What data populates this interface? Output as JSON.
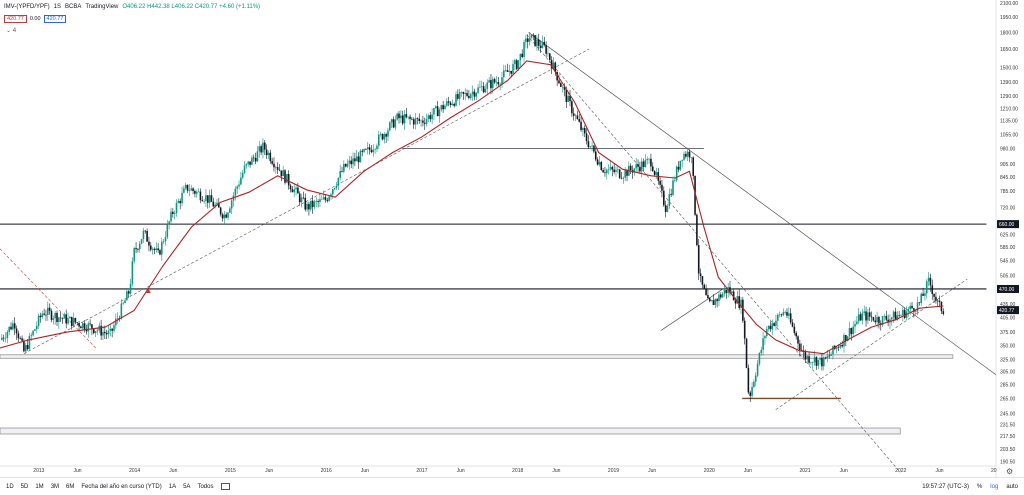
{
  "header": {
    "symbol": "IMV-(YPFD/YPF)",
    "interval": "1S",
    "exchange": "BCBA",
    "source": "TradingView",
    "ohlc": "O406.22 H442.38 L406.22 C420.77 +4.60 (+1.11%)"
  },
  "price_boxes": {
    "sell": "420.77",
    "spread": "0.00",
    "buy": "420.77"
  },
  "indicator_count": "4",
  "colors": {
    "up": "#089981",
    "down": "#131722",
    "ma": "#b22222",
    "last": "#2962ff"
  },
  "footer": {
    "timeframes": [
      "1D",
      "5D",
      "1M",
      "3M",
      "6M",
      "Fecha del año en curso (YTD)",
      "1A",
      "5A",
      "Todos"
    ],
    "clock": "19:57:27 (UTC-3)",
    "pct": "%",
    "log": "log",
    "auto": "auto"
  },
  "chart_data": {
    "type": "candlestick",
    "scale": "log",
    "ylim": [
      190,
      2100
    ],
    "y_ticks": [
      "2100.00",
      "1950.00",
      "1800.00",
      "1650.00",
      "1500.00",
      "1390.00",
      "1290.00",
      "1210.00",
      "1135.00",
      "1055.00",
      "980.00",
      "905.00",
      "845.00",
      "785.00",
      "720.00",
      "660.00",
      "625.00",
      "585.00",
      "545.00",
      "505.00",
      "470.00",
      "435.00",
      "405.00",
      "375.00",
      "350.00",
      "325.00",
      "305.00",
      "285.00",
      "265.00",
      "245.00",
      "231.50",
      "217.50",
      "203.50",
      "190.50"
    ],
    "x_ticks": [
      "2013",
      "Jun",
      "2014",
      "Jun",
      "2015",
      "Jun",
      "2016",
      "Jun",
      "2017",
      "Jun",
      "2018",
      "Jun",
      "2019",
      "Jun",
      "2020",
      "Jun",
      "2021",
      "Jun",
      "2022",
      "Jun",
      "20"
    ],
    "price_labels": [
      {
        "value": 660,
        "text": "660.00"
      },
      {
        "value": 470,
        "text": "470.00"
      },
      {
        "value": 420.77,
        "text": "420.77"
      }
    ],
    "series_path": [
      [
        2012.6,
        360
      ],
      [
        2012.75,
        395
      ],
      [
        2012.85,
        338
      ],
      [
        2013.05,
        418
      ],
      [
        2013.3,
        400
      ],
      [
        2013.55,
        385
      ],
      [
        2013.75,
        370
      ],
      [
        2013.95,
        465
      ],
      [
        2014.0,
        570
      ],
      [
        2014.1,
        630
      ],
      [
        2014.25,
        560
      ],
      [
        2014.4,
        700
      ],
      [
        2014.55,
        800
      ],
      [
        2014.75,
        760
      ],
      [
        2014.95,
        690
      ],
      [
        2015.15,
        880
      ],
      [
        2015.35,
        990
      ],
      [
        2015.55,
        860
      ],
      [
        2015.8,
        720
      ],
      [
        2016.0,
        750
      ],
      [
        2016.2,
        890
      ],
      [
        2016.45,
        970
      ],
      [
        2016.75,
        1150
      ],
      [
        2017.0,
        1130
      ],
      [
        2017.3,
        1250
      ],
      [
        2017.5,
        1310
      ],
      [
        2017.8,
        1400
      ],
      [
        2018.0,
        1530
      ],
      [
        2018.12,
        1760
      ],
      [
        2018.3,
        1650
      ],
      [
        2018.5,
        1300
      ],
      [
        2018.7,
        1050
      ],
      [
        2018.9,
        880
      ],
      [
        2019.1,
        860
      ],
      [
        2019.4,
        920
      ],
      [
        2019.55,
        720
      ],
      [
        2019.72,
        950
      ],
      [
        2019.82,
        960
      ],
      [
        2019.9,
        500
      ],
      [
        2020.0,
        430
      ],
      [
        2020.2,
        470
      ],
      [
        2020.35,
        430
      ],
      [
        2020.42,
        265
      ],
      [
        2020.6,
        380
      ],
      [
        2020.8,
        420
      ],
      [
        2021.0,
        330
      ],
      [
        2021.2,
        320
      ],
      [
        2021.4,
        360
      ],
      [
        2021.6,
        410
      ],
      [
        2021.8,
        400
      ],
      [
        2022.0,
        410
      ],
      [
        2022.2,
        435
      ],
      [
        2022.3,
        490
      ],
      [
        2022.4,
        430
      ],
      [
        2022.45,
        420.77
      ]
    ],
    "ma_path": [
      [
        2012.6,
        345
      ],
      [
        2012.9,
        360
      ],
      [
        2013.3,
        375
      ],
      [
        2013.7,
        385
      ],
      [
        2014.0,
        420
      ],
      [
        2014.3,
        530
      ],
      [
        2014.6,
        650
      ],
      [
        2014.9,
        740
      ],
      [
        2015.2,
        780
      ],
      [
        2015.5,
        850
      ],
      [
        2015.8,
        790
      ],
      [
        2016.1,
        760
      ],
      [
        2016.4,
        870
      ],
      [
        2016.7,
        960
      ],
      [
        2017.0,
        1040
      ],
      [
        2017.3,
        1150
      ],
      [
        2017.6,
        1260
      ],
      [
        2017.9,
        1400
      ],
      [
        2018.1,
        1550
      ],
      [
        2018.35,
        1520
      ],
      [
        2018.6,
        1250
      ],
      [
        2018.85,
        960
      ],
      [
        2019.1,
        880
      ],
      [
        2019.4,
        850
      ],
      [
        2019.65,
        840
      ],
      [
        2019.8,
        870
      ],
      [
        2019.95,
        650
      ],
      [
        2020.1,
        500
      ],
      [
        2020.3,
        440
      ],
      [
        2020.5,
        390
      ],
      [
        2020.7,
        360
      ],
      [
        2020.95,
        340
      ],
      [
        2021.2,
        335
      ],
      [
        2021.45,
        360
      ],
      [
        2021.7,
        385
      ],
      [
        2021.95,
        400
      ],
      [
        2022.2,
        425
      ],
      [
        2022.45,
        430
      ]
    ],
    "hlines": [
      {
        "from": 2012.6,
        "to": 2022.9,
        "value": 660,
        "weight": "bold"
      },
      {
        "from": 2012.6,
        "to": 2022.9,
        "value": 470,
        "weight": "bold"
      },
      {
        "from": 2016.8,
        "to": 2019.95,
        "value": 980,
        "weight": "thin"
      },
      {
        "from": 2020.35,
        "to": 2021.38,
        "value": 265,
        "weight": "brown"
      }
    ],
    "zones": [
      {
        "from": 2012.6,
        "to": 2022.55,
        "low": 327,
        "high": 333
      },
      {
        "from": 2012.6,
        "to": 2022.0,
        "low": 220,
        "high": 227
      }
    ]
  }
}
